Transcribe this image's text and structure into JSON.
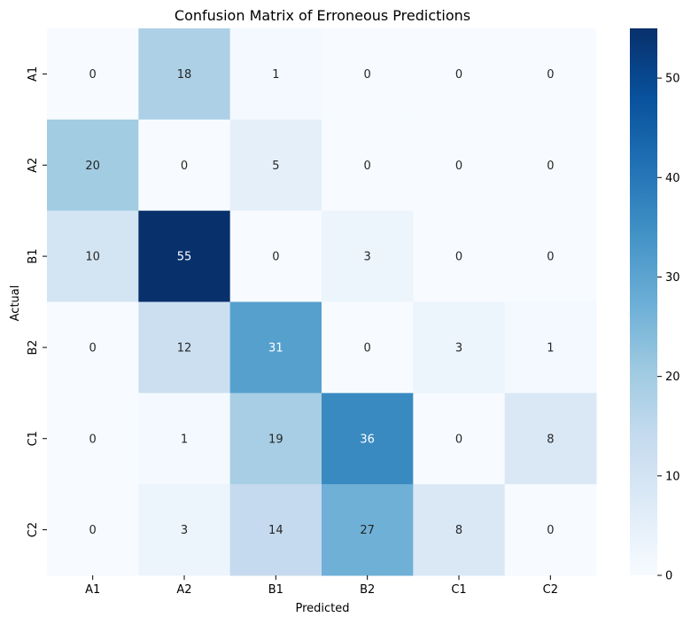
{
  "chart_data": {
    "type": "heatmap",
    "title": "Confusion Matrix of Erroneous Predictions",
    "xlabel": "Predicted",
    "ylabel": "Actual",
    "x_categories": [
      "A1",
      "A2",
      "B1",
      "B2",
      "C1",
      "C2"
    ],
    "y_categories": [
      "A1",
      "A2",
      "B1",
      "B2",
      "C1",
      "C2"
    ],
    "values": [
      [
        0,
        18,
        1,
        0,
        0,
        0
      ],
      [
        20,
        0,
        5,
        0,
        0,
        0
      ],
      [
        10,
        55,
        0,
        3,
        0,
        0
      ],
      [
        0,
        12,
        31,
        0,
        3,
        1
      ],
      [
        0,
        1,
        19,
        36,
        0,
        8
      ],
      [
        0,
        3,
        14,
        27,
        8,
        0
      ]
    ],
    "colormap": "Blues",
    "color_range": [
      0,
      55
    ],
    "colorbar_ticks": [
      0,
      10,
      20,
      30,
      40,
      50
    ],
    "annotations": true
  }
}
